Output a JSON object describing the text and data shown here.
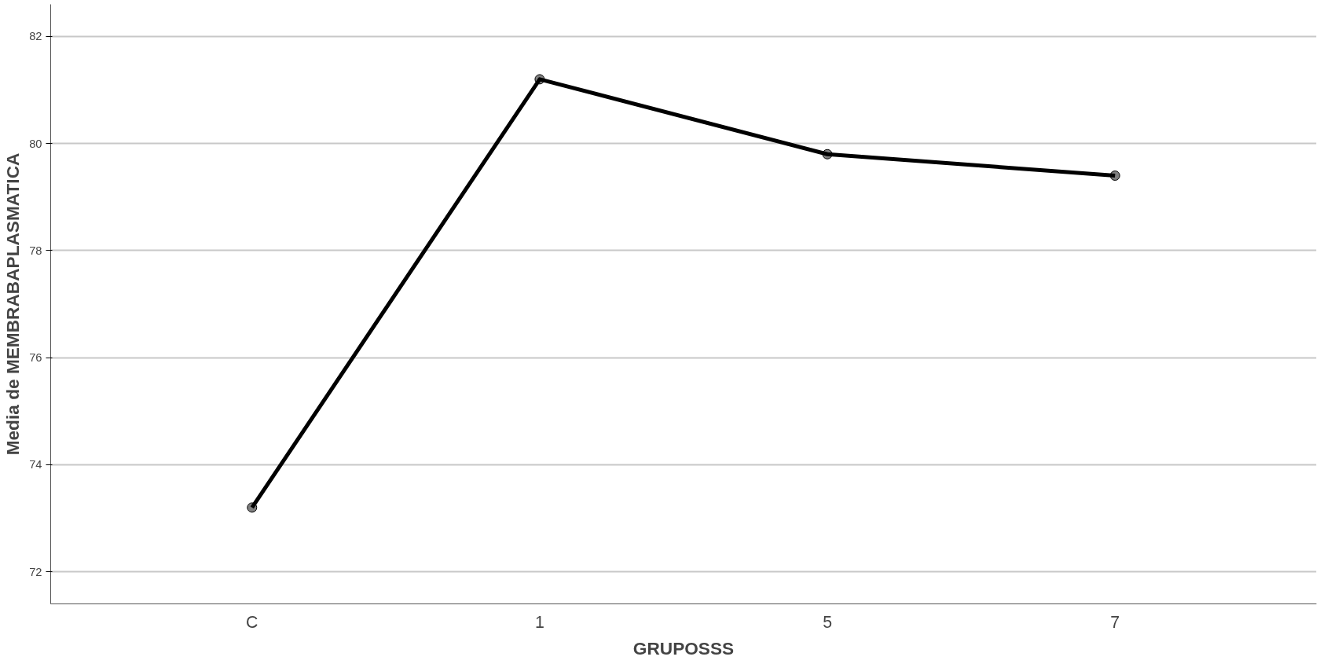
{
  "chart_data": {
    "type": "line",
    "xlabel": "GRUPOSSS",
    "ylabel": "Media de MEMBRABAPLASMATICA",
    "categories": [
      "C",
      "1",
      "5",
      "7"
    ],
    "series": [
      {
        "color": "#000000",
        "values": [
          73.2,
          81.2,
          79.8,
          79.4
        ]
      }
    ],
    "ylim": [
      71.4,
      82.6
    ],
    "yticks": [
      72,
      74,
      76,
      78,
      80,
      82
    ],
    "grid": "y",
    "marker": "circle",
    "line_style": "solid"
  }
}
